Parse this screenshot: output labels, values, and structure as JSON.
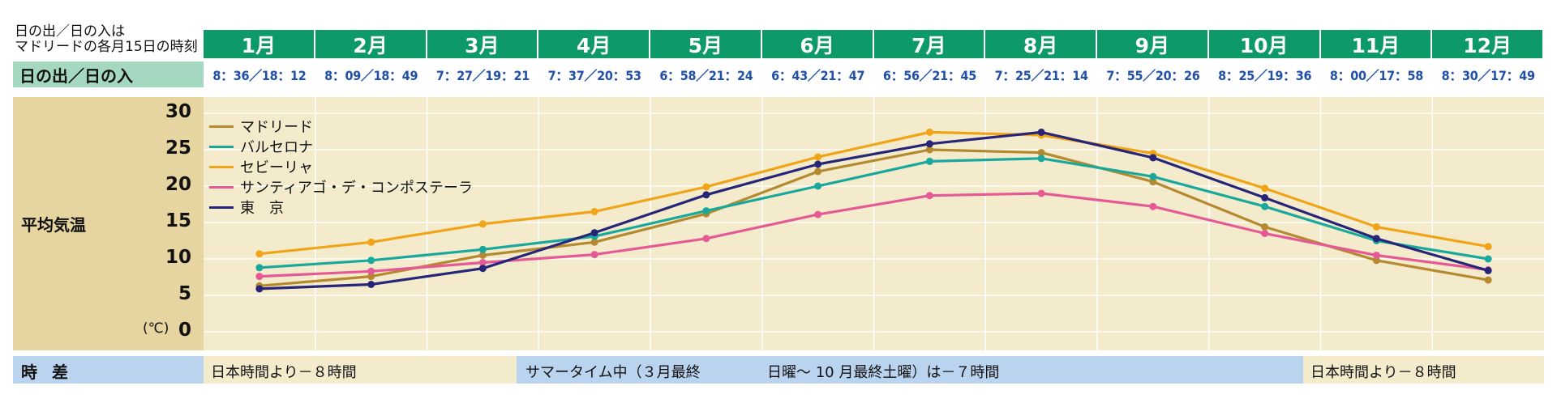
{
  "header": {
    "note_line1": "日の出／日の入は",
    "note_line2": "マドリードの各月15日の時刻",
    "sunrise_label": "日の出／日の入"
  },
  "months": [
    "1月",
    "2月",
    "3月",
    "4月",
    "5月",
    "6月",
    "7月",
    "8月",
    "9月",
    "10月",
    "11月",
    "12月"
  ],
  "sunrise_sunset": [
    "8：36／18：12",
    "8：09／18：49",
    "7：27／19：21",
    "7：37／20：53",
    "6：58／21：24",
    "6：43／21：47",
    "6：56／21：45",
    "7：25／21：14",
    "7：55／20：26",
    "8：25／19：36",
    "8：00／17：58",
    "8：30／17：49"
  ],
  "temperature": {
    "label": "平均気温",
    "unit": "(℃)"
  },
  "time_difference": {
    "label": "時差",
    "standard_left": "日本時間より－８時間",
    "summer_part1": "サマータイム中（３月最終",
    "summer_part2": "日曜～ 10 月最終土曜）は－７時間",
    "standard_right": "日本時間より－８時間"
  },
  "colors": {
    "header_green": "#0d9968",
    "chart_bg": "#f3ebcb",
    "label_tan": "#e6d5a0",
    "tz_blue": "#bad3ef",
    "madrid": "#b5892f",
    "barcelona": "#1aa89c",
    "sevilla": "#f0a418",
    "santiago": "#e55a95",
    "tokyo": "#262578"
  },
  "chart_data": {
    "type": "line",
    "title": "平均気温",
    "xlabel": "",
    "ylabel": "平均気温 (℃)",
    "ylim": [
      0,
      30
    ],
    "yticks": [
      0,
      5,
      10,
      15,
      20,
      25,
      30
    ],
    "categories": [
      "1月",
      "2月",
      "3月",
      "4月",
      "5月",
      "6月",
      "7月",
      "8月",
      "9月",
      "10月",
      "11月",
      "12月"
    ],
    "legend_position": "top-left",
    "series": [
      {
        "name": "マドリード",
        "color": "#b5892f",
        "values": [
          6.3,
          7.6,
          10.5,
          12.3,
          16.2,
          22.0,
          25.0,
          24.6,
          20.6,
          14.4,
          9.8,
          7.1
        ]
      },
      {
        "name": "バルセロナ",
        "color": "#1aa89c",
        "values": [
          8.8,
          9.8,
          11.3,
          13.1,
          16.6,
          20.0,
          23.4,
          23.8,
          21.3,
          17.2,
          12.5,
          10.0
        ]
      },
      {
        "name": "セビーリャ",
        "color": "#f0a418",
        "values": [
          10.7,
          12.3,
          14.8,
          16.5,
          19.9,
          24.0,
          27.4,
          27.0,
          24.5,
          19.7,
          14.4,
          11.7
        ]
      },
      {
        "name": "サンティアゴ・デ・コンポステーラ",
        "color": "#e55a95",
        "values": [
          7.6,
          8.3,
          9.5,
          10.6,
          12.8,
          16.1,
          18.7,
          19.0,
          17.2,
          13.5,
          10.5,
          8.5
        ]
      },
      {
        "name": "東　京",
        "color": "#262578",
        "values": [
          5.9,
          6.5,
          8.7,
          13.6,
          18.8,
          23.0,
          25.8,
          27.4,
          23.9,
          18.4,
          12.8,
          8.4
        ]
      }
    ]
  }
}
